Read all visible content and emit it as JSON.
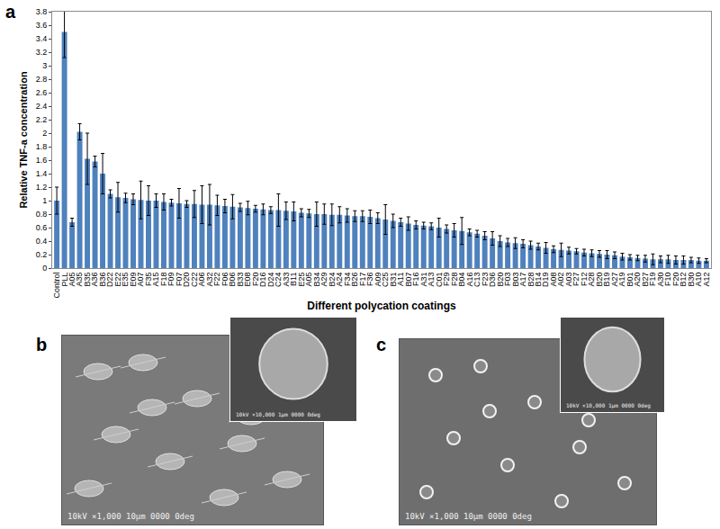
{
  "chart_data": {
    "type": "bar",
    "panel_label": "a",
    "y_label": "Relative TNF-a concentration",
    "x_label": "Different polycation coatings",
    "categories": [
      "Control",
      "PLL",
      "A05",
      "A35",
      "B35",
      "A36",
      "B36",
      "D22",
      "E22",
      "E35",
      "E09",
      "A07",
      "F35",
      "A15",
      "F18",
      "F09",
      "F07",
      "D20",
      "C22",
      "A06",
      "A32",
      "F22",
      "F06",
      "B06",
      "B33",
      "E08",
      "F20",
      "D16",
      "D24",
      "C24",
      "A33",
      "B11",
      "E25",
      "A05",
      "B34",
      "A29",
      "B24",
      "A24",
      "F34",
      "B26",
      "F17",
      "F36",
      "A09",
      "C25",
      "B31",
      "A11",
      "B07",
      "F16",
      "A31",
      "A13",
      "C01",
      "F29",
      "F28",
      "B04",
      "A16",
      "C13",
      "F23",
      "D36",
      "B20",
      "F03",
      "B03",
      "A17",
      "B28",
      "B14",
      "D19",
      "A08",
      "A02",
      "A03",
      "F27",
      "F12",
      "A28",
      "B20",
      "B19",
      "A27",
      "A19",
      "B01",
      "A20",
      "B27",
      "F19",
      "A30",
      "F10",
      "F20",
      "B12",
      "B30",
      "A10",
      "A12"
    ],
    "values": [
      1.0,
      3.5,
      0.68,
      2.02,
      1.62,
      1.58,
      1.4,
      1.1,
      1.05,
      1.04,
      1.02,
      1.01,
      1.0,
      1.0,
      0.98,
      0.97,
      0.96,
      0.95,
      0.95,
      0.94,
      0.94,
      0.93,
      0.92,
      0.91,
      0.9,
      0.89,
      0.88,
      0.87,
      0.86,
      0.86,
      0.85,
      0.84,
      0.82,
      0.81,
      0.8,
      0.8,
      0.79,
      0.79,
      0.78,
      0.77,
      0.77,
      0.76,
      0.74,
      0.72,
      0.7,
      0.68,
      0.66,
      0.64,
      0.63,
      0.62,
      0.6,
      0.58,
      0.56,
      0.55,
      0.53,
      0.51,
      0.48,
      0.44,
      0.4,
      0.38,
      0.37,
      0.36,
      0.34,
      0.32,
      0.3,
      0.28,
      0.27,
      0.26,
      0.25,
      0.23,
      0.22,
      0.21,
      0.2,
      0.19,
      0.17,
      0.16,
      0.15,
      0.14,
      0.13,
      0.13,
      0.13,
      0.12,
      0.12,
      0.12,
      0.11,
      0.11
    ],
    "errors": [
      0.2,
      0.38,
      0.06,
      0.12,
      0.38,
      0.08,
      0.3,
      0.06,
      0.22,
      0.07,
      0.08,
      0.28,
      0.22,
      0.1,
      0.12,
      0.05,
      0.22,
      0.05,
      0.2,
      0.28,
      0.3,
      0.15,
      0.1,
      0.18,
      0.06,
      0.1,
      0.05,
      0.08,
      0.05,
      0.24,
      0.13,
      0.14,
      0.06,
      0.06,
      0.18,
      0.15,
      0.16,
      0.12,
      0.1,
      0.08,
      0.08,
      0.1,
      0.08,
      0.22,
      0.1,
      0.06,
      0.1,
      0.06,
      0.05,
      0.05,
      0.14,
      0.06,
      0.1,
      0.2,
      0.05,
      0.05,
      0.06,
      0.1,
      0.08,
      0.06,
      0.08,
      0.06,
      0.06,
      0.05,
      0.08,
      0.05,
      0.1,
      0.05,
      0.04,
      0.05,
      0.05,
      0.05,
      0.06,
      0.05,
      0.05,
      0.04,
      0.04,
      0.05,
      0.08,
      0.05,
      0.06,
      0.06,
      0.06,
      0.04,
      0.04,
      0.03
    ],
    "color": "#4f81bd",
    "ylim": [
      0,
      3.8
    ],
    "yticks": [
      0,
      0.2,
      0.4,
      0.6,
      0.8,
      1,
      1.2,
      1.4,
      1.6,
      1.8,
      2,
      2.2,
      2.4,
      2.6,
      2.8,
      3,
      3.2,
      3.4,
      3.6,
      3.8
    ],
    "grid": false
  },
  "panels": [
    {
      "label": "b",
      "caption": "10kV  ×1,000  10μm  0000 0deg",
      "inset_caption": "10kV  ×10,000  1μm  0000 0deg"
    },
    {
      "label": "c",
      "caption": "10kV  ×1,000  10μm  0000 0deg",
      "inset_caption": "10kV  ×10,000  1μm  0000 0deg"
    }
  ]
}
